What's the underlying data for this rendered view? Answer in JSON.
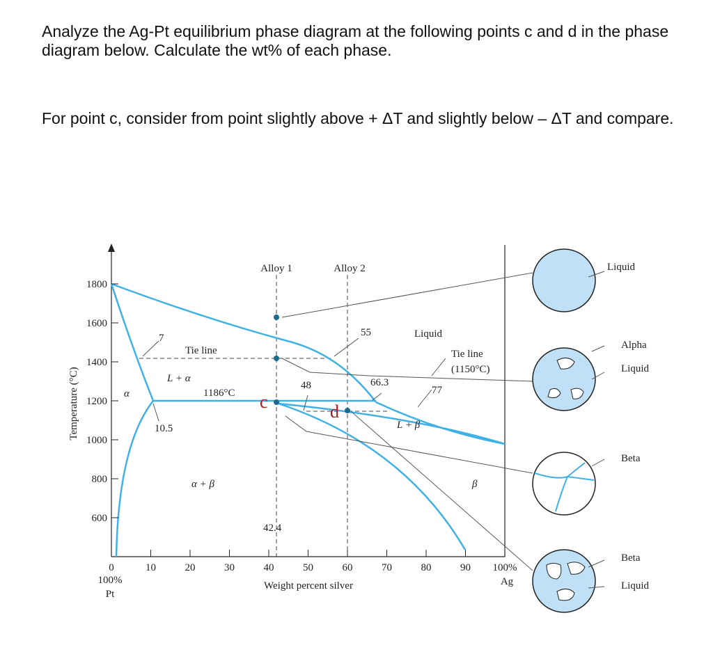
{
  "question": [
    "Analyze the Ag-Pt equilibrium phase diagram at the following points c and d in the phase diagram below. Calculate the wt% of each phase.",
    "For point c, consider from point slightly above + ΔT and slightly below – ΔT and compare."
  ],
  "diagram": {
    "y_axis_label": "Temperature (°C)",
    "x_axis_label": "Weight percent silver",
    "yticks": [
      600,
      800,
      1000,
      1200,
      1400,
      1600,
      1800
    ],
    "xticks": [
      0,
      10,
      20,
      30,
      40,
      50,
      60,
      70,
      80,
      90
    ],
    "x_left_label": [
      "100%",
      "Pt"
    ],
    "x_right_label": [
      "100%",
      "Ag"
    ],
    "labels": {
      "alloy1": "Alloy 1",
      "alloy2": "Alloy 2",
      "liquid": "Liquid",
      "tie_line": "Tie line",
      "tie_line_2": "Tie line",
      "tie_line_2_temp": "(1150°C)",
      "l_alpha": "L + α",
      "alpha": "α",
      "l_beta": "L + β",
      "beta": "β",
      "alpha_beta": "α + β",
      "temp_1186": "1186°C",
      "c": "c",
      "d": "d",
      "n7": "7",
      "n55": "55",
      "n48": "48",
      "n66_3": "66.3",
      "n77": "77",
      "n10_5": "10.5",
      "n42_4": "42.4"
    },
    "microstructures": [
      [
        "Liquid"
      ],
      [
        "Alpha",
        "Liquid"
      ],
      [
        "Beta"
      ],
      [
        "Beta",
        "Liquid"
      ]
    ]
  }
}
